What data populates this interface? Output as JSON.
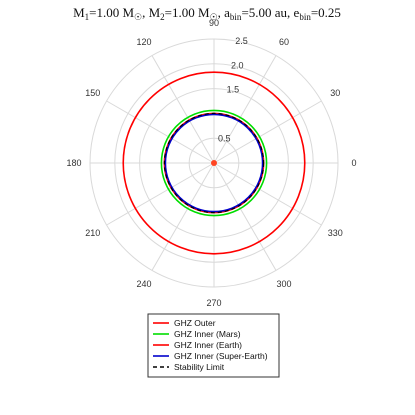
{
  "chart_data": {
    "type": "polar",
    "title": {
      "m1_prefix": "M",
      "m1_sub": "1",
      "m1_value": "=1.00 M",
      "sun_sub": "☉",
      "sep1": ", M",
      "m2_sub": "2",
      "m2_value": "=1.00 M",
      "sun_sub2": "☉",
      "sep2": ", a",
      "abin_sub": "bin",
      "abin_value": "=5.00 au, e",
      "ebin_sub": "bin",
      "ebin_value": "=0.25"
    },
    "r_ticks": [
      "0.5",
      "1.5",
      "2.0",
      "2.5"
    ],
    "r_tick_values": [
      0.5,
      1.5,
      2.0,
      2.5
    ],
    "r_max": 2.5,
    "theta_ticks": [
      "0",
      "30",
      "60",
      "90",
      "120",
      "150",
      "180",
      "210",
      "240",
      "270",
      "300",
      "330"
    ],
    "theta_tick_values": [
      0,
      30,
      60,
      90,
      120,
      150,
      180,
      210,
      240,
      270,
      300,
      330
    ],
    "grid": true,
    "legend_position": "bottom",
    "series": [
      {
        "name": "GHZ Outer",
        "color": "#ff0000",
        "style": "solid",
        "radius": 1.83
      },
      {
        "name": "GHZ Inner (Mars)",
        "color": "#00dd00",
        "style": "solid",
        "radius": 1.06
      },
      {
        "name": "GHZ Inner (Earth)",
        "color": "#ff0000",
        "style": "solid",
        "radius": 1.0
      },
      {
        "name": "GHZ Inner (Super-Earth)",
        "color": "#0000cc",
        "style": "solid",
        "radius": 0.98
      },
      {
        "name": "Stability Limit",
        "color": "#000000",
        "style": "dashed",
        "radius": 1.0
      }
    ],
    "center_marker_color": "#ff4422"
  }
}
